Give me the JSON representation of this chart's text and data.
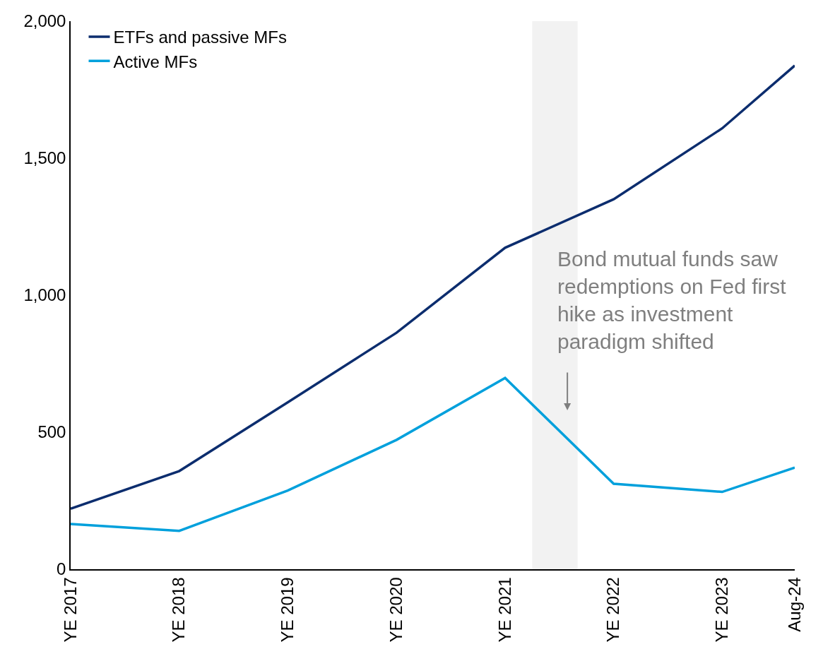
{
  "chart_data": {
    "type": "line",
    "x": [
      "2017-12-31",
      "2018-12-31",
      "2019-12-31",
      "2020-12-31",
      "2021-12-31",
      "2022-12-31",
      "2023-12-31",
      "2024-08-31"
    ],
    "series": [
      {
        "name": "ETFs and passive MFs",
        "color": "#0c2d6e",
        "values": [
          221,
          358,
          609,
          863,
          1173,
          1350,
          1609,
          1838
        ]
      },
      {
        "name": "Active MFs",
        "color": "#00a0dc",
        "values": [
          165,
          140,
          287,
          472,
          698,
          312,
          282,
          371
        ]
      }
    ],
    "xlim": [
      "2017-12-31",
      "2024-08-31"
    ],
    "xticks": [
      {
        "value": "2017-12-31",
        "label": "YE 2017"
      },
      {
        "value": "2018-12-31",
        "label": "YE 2018"
      },
      {
        "value": "2019-12-31",
        "label": "YE 2019"
      },
      {
        "value": "2020-12-31",
        "label": "YE 2020"
      },
      {
        "value": "2021-12-31",
        "label": "YE 2021"
      },
      {
        "value": "2022-12-31",
        "label": "YE 2022"
      },
      {
        "value": "2023-12-31",
        "label": "YE 2023"
      },
      {
        "value": "2024-08-31",
        "label": "Aug-24"
      }
    ],
    "ylim": [
      0,
      2000
    ],
    "yticks": [
      {
        "value": 0,
        "label": "0"
      },
      {
        "value": 500,
        "label": "500"
      },
      {
        "value": 1000,
        "label": "1,000"
      },
      {
        "value": 1500,
        "label": "1,500"
      },
      {
        "value": 2000,
        "label": "2,000"
      }
    ],
    "bands": [
      {
        "axis": "x",
        "from": "2022-04-01",
        "to": "2022-09-01",
        "color": "#f2f2f2"
      }
    ],
    "annotations": [
      "Bond mutual funds saw\nredemptions on Fed first\nhike as investment\nparadigm shifted"
    ],
    "legend": "top left",
    "grid": false,
    "marker": "none",
    "line_style": "solid"
  }
}
